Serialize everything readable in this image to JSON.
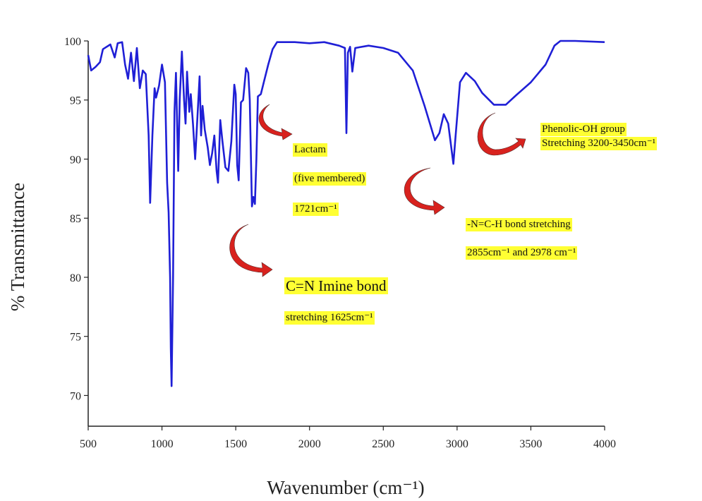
{
  "chart_data": {
    "type": "line",
    "xlabel": "Wavenumber (cm⁻¹)",
    "ylabel": "% Transmittance",
    "xlim": [
      500,
      4000
    ],
    "ylim": [
      67.4,
      100
    ],
    "xticks": [
      500,
      1000,
      1500,
      2000,
      2500,
      3000,
      3500,
      4000
    ],
    "yticks": [
      70,
      75,
      80,
      85,
      90,
      95,
      100
    ],
    "x": [
      500,
      520,
      550,
      580,
      600,
      650,
      680,
      700,
      730,
      750,
      770,
      790,
      810,
      830,
      850,
      870,
      890,
      910,
      920,
      935,
      950,
      960,
      980,
      1000,
      1020,
      1035,
      1045,
      1055,
      1060,
      1065,
      1075,
      1085,
      1095,
      1110,
      1120,
      1135,
      1150,
      1160,
      1170,
      1185,
      1195,
      1210,
      1225,
      1240,
      1255,
      1265,
      1275,
      1290,
      1310,
      1325,
      1340,
      1355,
      1370,
      1380,
      1395,
      1410,
      1430,
      1450,
      1470,
      1490,
      1500,
      1510,
      1520,
      1535,
      1550,
      1570,
      1585,
      1595,
      1610,
      1620,
      1630,
      1640,
      1650,
      1670,
      1690,
      1720,
      1750,
      1780,
      1900,
      2000,
      2100,
      2200,
      2240,
      2250,
      2260,
      2275,
      2290,
      2310,
      2400,
      2500,
      2600,
      2700,
      2780,
      2850,
      2880,
      2910,
      2940,
      2975,
      2990,
      3020,
      3060,
      3120,
      3170,
      3250,
      3330,
      3400,
      3500,
      3600,
      3660,
      3700,
      3800,
      4000
    ],
    "series": [
      {
        "color": "#1f1fd6",
        "values": [
          98.8,
          97.5,
          97.8,
          98.2,
          99.3,
          99.7,
          98.6,
          99.8,
          99.9,
          98.0,
          96.8,
          99.0,
          96.6,
          99.4,
          96.0,
          97.5,
          97.2,
          92.0,
          86.3,
          92.0,
          96.0,
          95.2,
          96.2,
          98.0,
          96.5,
          88.0,
          85.5,
          80.0,
          74.0,
          70.8,
          80.0,
          94.0,
          97.3,
          89.0,
          95.0,
          99.1,
          95.0,
          93.0,
          97.4,
          94.0,
          95.5,
          93.0,
          90.0,
          93.5,
          97.0,
          92.0,
          94.5,
          92.5,
          91.0,
          89.5,
          90.5,
          92.0,
          89.0,
          88.0,
          93.3,
          91.5,
          89.3,
          89.0,
          91.5,
          96.3,
          95.5,
          89.5,
          88.2,
          94.8,
          95.0,
          97.7,
          97.3,
          95.0,
          86.0,
          86.8,
          86.2,
          90.0,
          95.3,
          95.5,
          96.5,
          98.0,
          99.3,
          99.9,
          99.9,
          99.8,
          99.9,
          99.6,
          99.4,
          92.2,
          99.0,
          99.5,
          97.4,
          99.4,
          99.6,
          99.4,
          99.0,
          97.5,
          94.5,
          91.6,
          92.2,
          93.8,
          93.0,
          89.6,
          92.0,
          96.5,
          97.3,
          96.6,
          95.6,
          94.6,
          94.6,
          95.4,
          96.5,
          98.0,
          99.6,
          100,
          100,
          99.9
        ]
      }
    ],
    "annotations": [
      {
        "lines": [
          "Lactam",
          "(five membered)",
          "1721cm⁻¹"
        ]
      },
      {
        "lines": [
          "C=N Imine bond",
          "stretching 1625cm⁻¹"
        ]
      },
      {
        "lines": [
          "-N=C-H bond stretching",
          "2855cm⁻¹ and 2978 cm⁻¹"
        ]
      },
      {
        "lines": [
          "Phenolic-OH group",
          "Stretching 3200-3450cm⁻¹"
        ]
      }
    ]
  }
}
